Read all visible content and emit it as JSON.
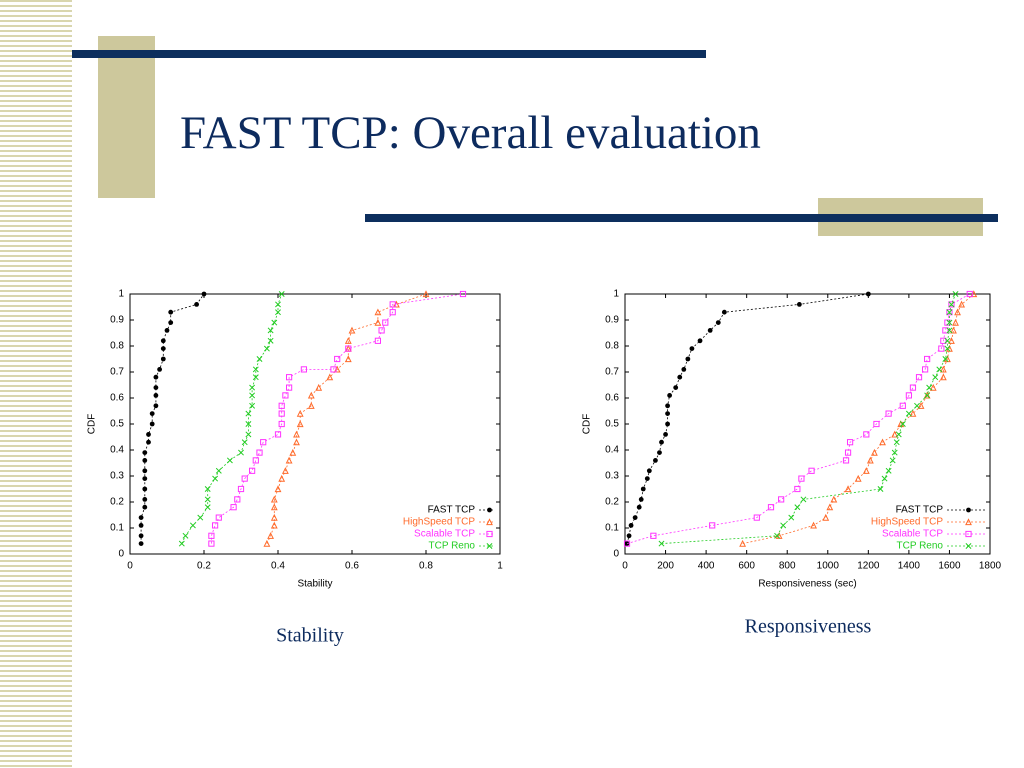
{
  "slide": {
    "title": "FAST TCP: Overall evaluation"
  },
  "chart_data": [
    {
      "type": "line",
      "caption": "Stability",
      "x_label": "Stability",
      "y_label": "CDF",
      "xlim": [
        0,
        1
      ],
      "ylim": [
        0,
        1
      ],
      "xticks": [
        0,
        0.2,
        0.4,
        0.6,
        0.8,
        1
      ],
      "yticks": [
        0,
        0.1,
        0.2,
        0.3,
        0.4,
        0.5,
        0.6,
        0.7,
        0.8,
        0.9,
        1
      ],
      "legend": "lower-right",
      "series": [
        {
          "name": "FAST TCP",
          "color": "#000000",
          "marker": "circle",
          "x": [
            0.03,
            0.03,
            0.03,
            0.03,
            0.04,
            0.04,
            0.04,
            0.04,
            0.04,
            0.04,
            0.04,
            0.05,
            0.05,
            0.06,
            0.06,
            0.07,
            0.07,
            0.07,
            0.07,
            0.08,
            0.09,
            0.09,
            0.09,
            0.1,
            0.11,
            0.11,
            0.18,
            0.2
          ],
          "values": [
            0.04,
            0.07,
            0.11,
            0.14,
            0.18,
            0.21,
            0.25,
            0.29,
            0.32,
            0.36,
            0.39,
            0.43,
            0.46,
            0.5,
            0.54,
            0.57,
            0.61,
            0.64,
            0.68,
            0.71,
            0.75,
            0.79,
            0.82,
            0.86,
            0.89,
            0.93,
            0.96,
            1
          ]
        },
        {
          "name": "HighSpeed TCP",
          "color": "#ff6a2a",
          "marker": "triangle",
          "x": [
            0.37,
            0.38,
            0.39,
            0.39,
            0.39,
            0.39,
            0.4,
            0.41,
            0.42,
            0.43,
            0.44,
            0.45,
            0.45,
            0.46,
            0.46,
            0.49,
            0.49,
            0.51,
            0.54,
            0.56,
            0.59,
            0.59,
            0.59,
            0.6,
            0.67,
            0.67,
            0.72,
            0.8
          ],
          "values": [
            0.04,
            0.07,
            0.11,
            0.14,
            0.18,
            0.21,
            0.25,
            0.29,
            0.32,
            0.36,
            0.39,
            0.43,
            0.46,
            0.5,
            0.54,
            0.57,
            0.61,
            0.64,
            0.68,
            0.71,
            0.75,
            0.79,
            0.82,
            0.86,
            0.89,
            0.93,
            0.96,
            1
          ]
        },
        {
          "name": "Scalable TCP",
          "color": "#ff33ff",
          "marker": "square",
          "x": [
            0.22,
            0.22,
            0.23,
            0.24,
            0.28,
            0.29,
            0.3,
            0.31,
            0.33,
            0.34,
            0.35,
            0.36,
            0.4,
            0.41,
            0.41,
            0.41,
            0.42,
            0.43,
            0.43,
            0.47,
            0.55,
            0.56,
            0.59,
            0.67,
            0.68,
            0.69,
            0.71,
            0.71,
            0.9
          ],
          "values": [
            0.04,
            0.07,
            0.11,
            0.14,
            0.18,
            0.21,
            0.25,
            0.29,
            0.32,
            0.36,
            0.39,
            0.43,
            0.46,
            0.5,
            0.54,
            0.57,
            0.61,
            0.64,
            0.68,
            0.71,
            0.71,
            0.75,
            0.79,
            0.82,
            0.86,
            0.89,
            0.93,
            0.96,
            1
          ]
        },
        {
          "name": "TCP Reno",
          "color": "#22cc22",
          "marker": "cross",
          "x": [
            0.14,
            0.15,
            0.17,
            0.19,
            0.21,
            0.21,
            0.21,
            0.23,
            0.24,
            0.27,
            0.3,
            0.31,
            0.32,
            0.32,
            0.32,
            0.33,
            0.33,
            0.33,
            0.34,
            0.34,
            0.35,
            0.37,
            0.38,
            0.38,
            0.39,
            0.4,
            0.4,
            0.41
          ],
          "values": [
            0.04,
            0.07,
            0.11,
            0.14,
            0.18,
            0.21,
            0.25,
            0.29,
            0.32,
            0.36,
            0.39,
            0.43,
            0.46,
            0.5,
            0.54,
            0.57,
            0.61,
            0.64,
            0.68,
            0.71,
            0.75,
            0.79,
            0.82,
            0.86,
            0.89,
            0.93,
            0.96,
            1
          ]
        }
      ]
    },
    {
      "type": "line",
      "caption": "Responsiveness",
      "x_label": "Responsiveness (sec)",
      "y_label": "CDF",
      "xlim": [
        0,
        1800
      ],
      "ylim": [
        0,
        1
      ],
      "xticks": [
        0,
        200,
        400,
        600,
        800,
        1000,
        1200,
        1400,
        1600,
        1800
      ],
      "yticks": [
        0,
        0.1,
        0.2,
        0.3,
        0.4,
        0.5,
        0.6,
        0.7,
        0.8,
        0.9,
        1
      ],
      "legend": "lower-right",
      "series": [
        {
          "name": "FAST TCP",
          "color": "#000000",
          "marker": "circle",
          "x": [
            10,
            20,
            30,
            50,
            70,
            80,
            90,
            110,
            120,
            150,
            170,
            180,
            200,
            210,
            210,
            210,
            220,
            250,
            270,
            290,
            310,
            330,
            370,
            420,
            460,
            490,
            860,
            1200
          ],
          "values": [
            0.04,
            0.07,
            0.11,
            0.14,
            0.18,
            0.21,
            0.25,
            0.29,
            0.32,
            0.36,
            0.39,
            0.43,
            0.46,
            0.5,
            0.54,
            0.57,
            0.61,
            0.64,
            0.68,
            0.71,
            0.75,
            0.79,
            0.82,
            0.86,
            0.89,
            0.93,
            0.96,
            1
          ]
        },
        {
          "name": "HighSpeed TCP",
          "color": "#ff6a2a",
          "marker": "triangle",
          "x": [
            580,
            760,
            930,
            990,
            1010,
            1030,
            1100,
            1150,
            1190,
            1210,
            1230,
            1270,
            1330,
            1360,
            1420,
            1460,
            1490,
            1520,
            1570,
            1570,
            1590,
            1600,
            1610,
            1620,
            1630,
            1640,
            1660,
            1720
          ],
          "values": [
            0.04,
            0.07,
            0.11,
            0.14,
            0.18,
            0.21,
            0.25,
            0.29,
            0.32,
            0.36,
            0.39,
            0.43,
            0.46,
            0.5,
            0.54,
            0.57,
            0.61,
            0.64,
            0.68,
            0.71,
            0.75,
            0.79,
            0.82,
            0.86,
            0.89,
            0.93,
            0.96,
            1
          ]
        },
        {
          "name": "Scalable TCP",
          "color": "#ff33ff",
          "marker": "square",
          "x": [
            10,
            140,
            430,
            650,
            720,
            770,
            850,
            870,
            920,
            1090,
            1100,
            1110,
            1190,
            1240,
            1300,
            1370,
            1400,
            1420,
            1450,
            1480,
            1490,
            1560,
            1570,
            1580,
            1590,
            1600,
            1610,
            1700
          ],
          "values": [
            0.04,
            0.07,
            0.11,
            0.14,
            0.18,
            0.21,
            0.25,
            0.29,
            0.32,
            0.36,
            0.39,
            0.43,
            0.46,
            0.5,
            0.54,
            0.57,
            0.61,
            0.64,
            0.68,
            0.71,
            0.75,
            0.79,
            0.82,
            0.86,
            0.89,
            0.93,
            0.96,
            1
          ]
        },
        {
          "name": "TCP Reno",
          "color": "#22cc22",
          "marker": "cross",
          "x": [
            180,
            750,
            780,
            820,
            850,
            880,
            1260,
            1280,
            1300,
            1320,
            1330,
            1340,
            1350,
            1370,
            1400,
            1440,
            1490,
            1500,
            1530,
            1550,
            1580,
            1590,
            1590,
            1600,
            1600,
            1600,
            1610,
            1630
          ],
          "values": [
            0.04,
            0.07,
            0.11,
            0.14,
            0.18,
            0.21,
            0.25,
            0.29,
            0.32,
            0.36,
            0.39,
            0.43,
            0.46,
            0.5,
            0.54,
            0.57,
            0.61,
            0.64,
            0.68,
            0.71,
            0.75,
            0.79,
            0.82,
            0.86,
            0.89,
            0.93,
            0.96,
            1
          ]
        }
      ]
    }
  ]
}
